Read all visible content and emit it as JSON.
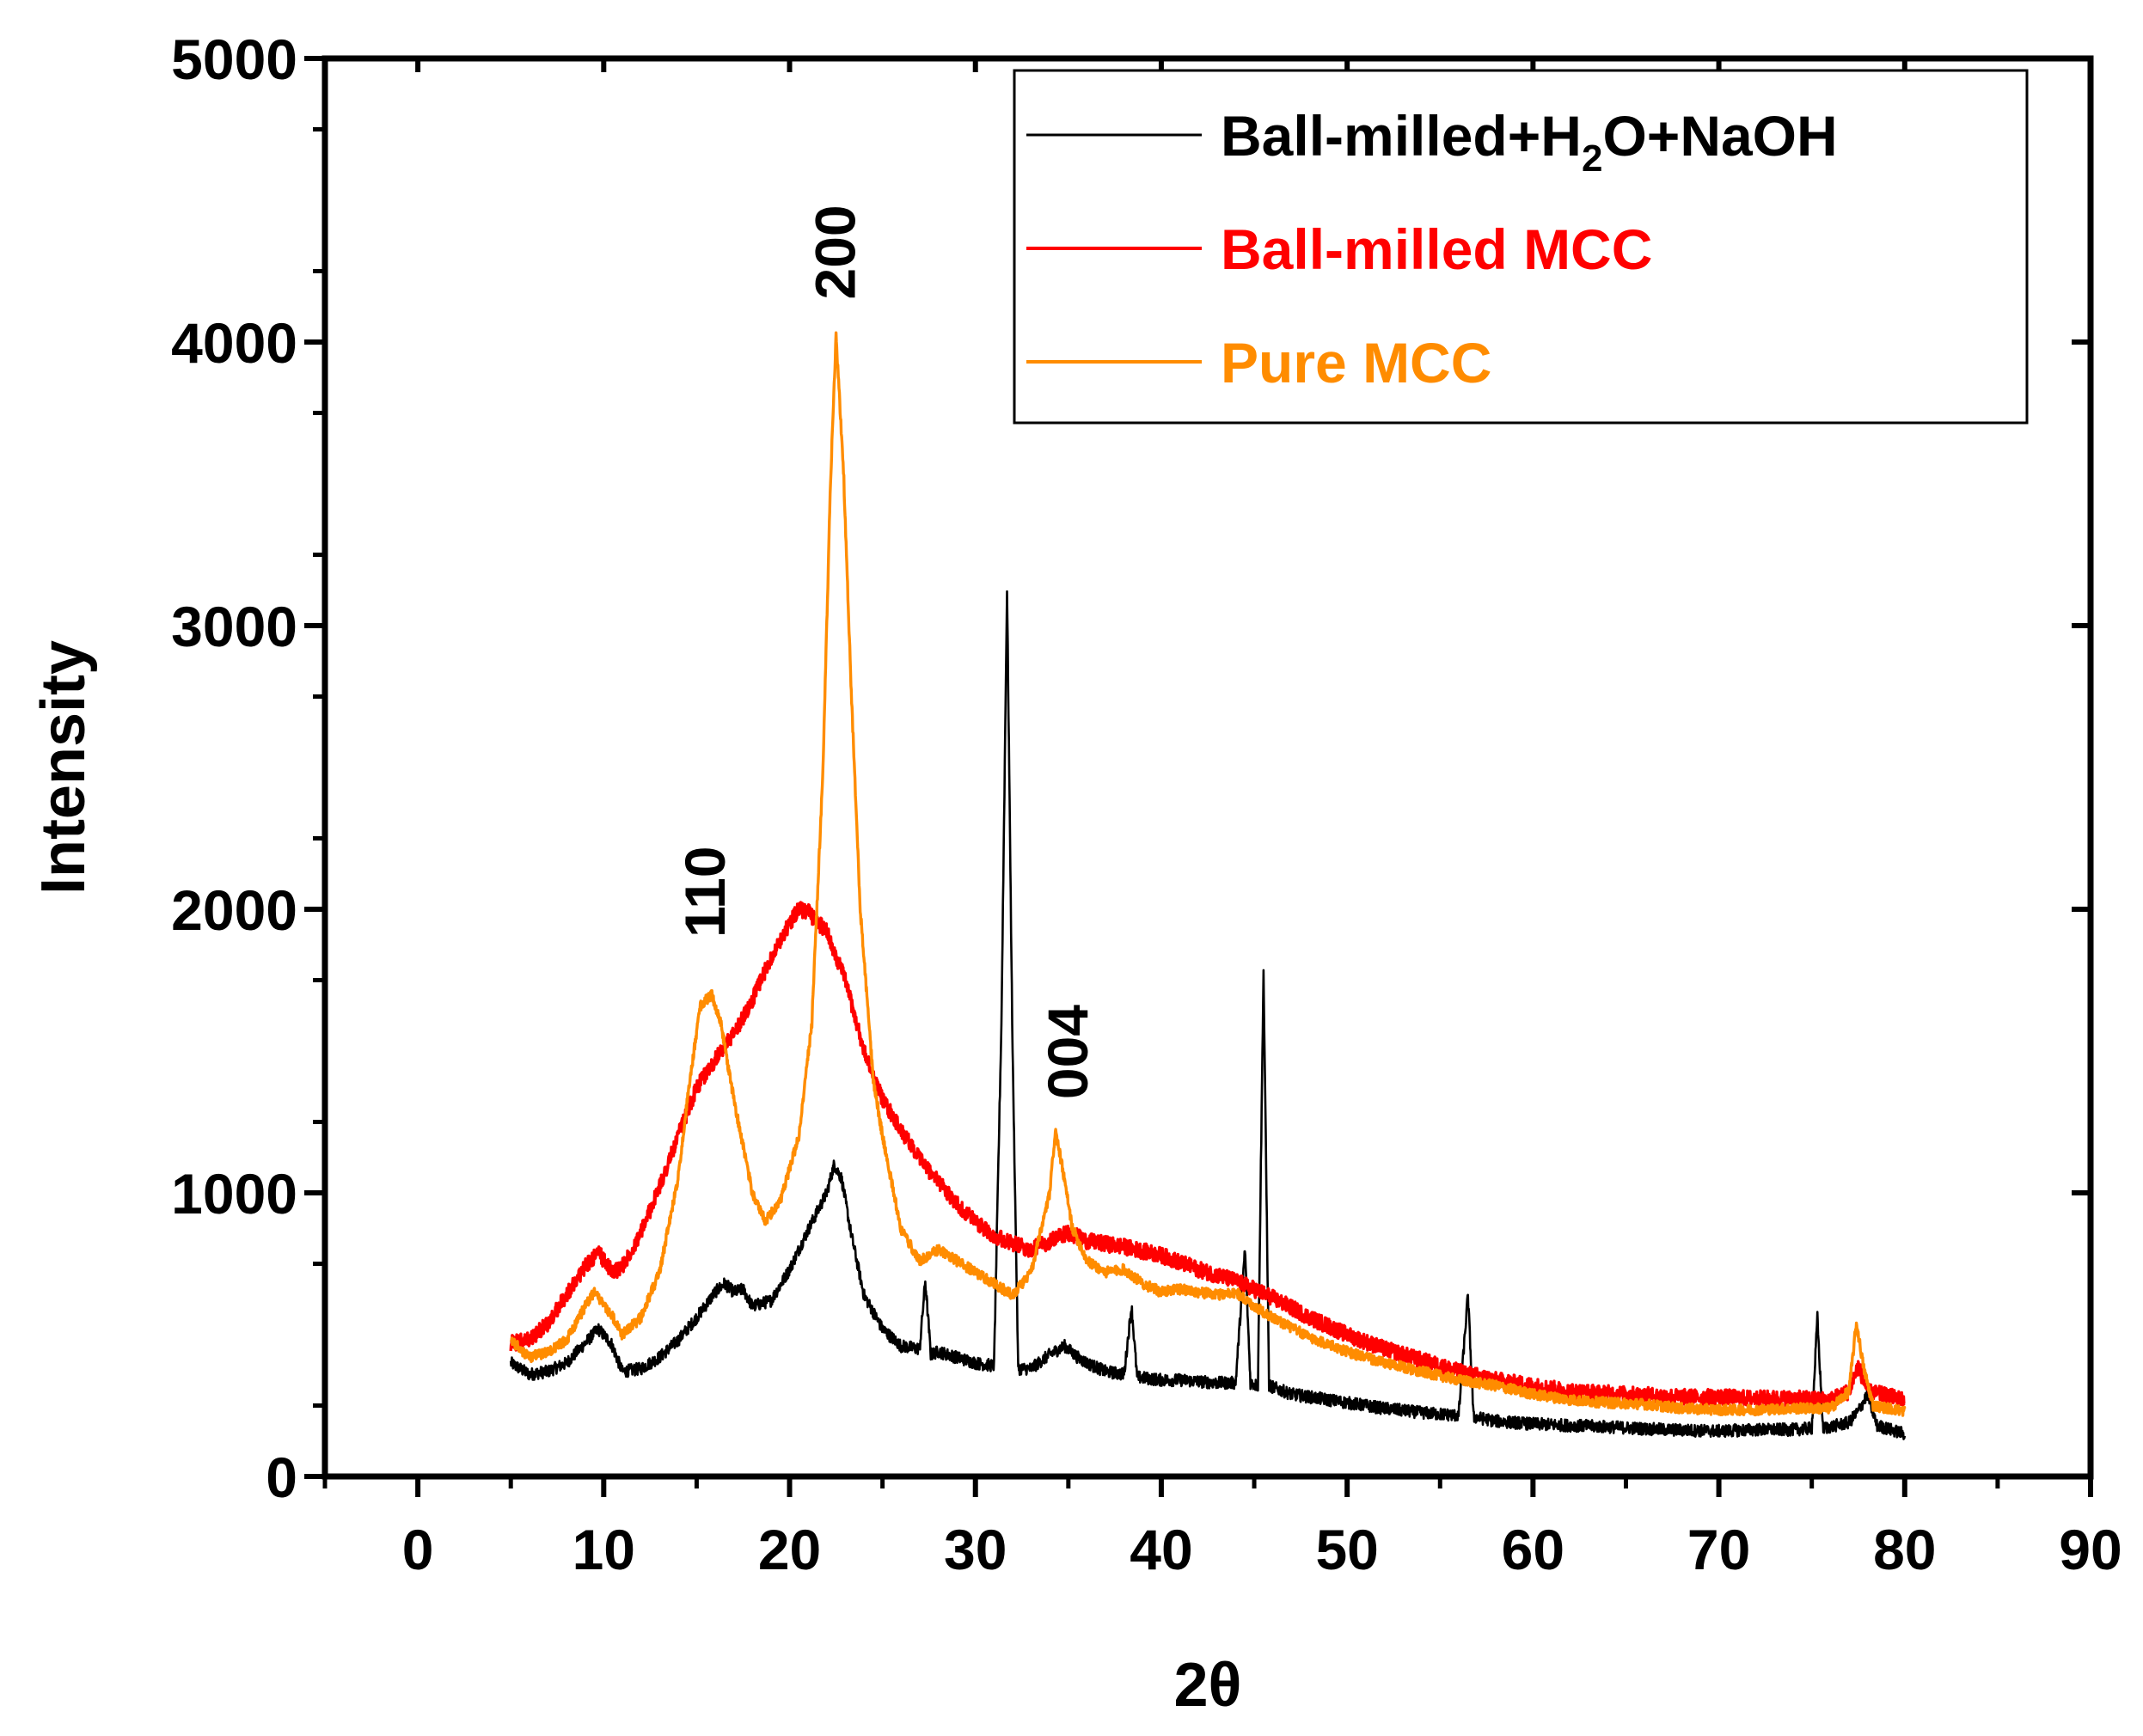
{
  "chart_data": {
    "type": "line",
    "title": "",
    "xlabel": "2θ",
    "ylabel": "Intensity",
    "xlim": [
      -5,
      90
    ],
    "ylim": [
      0,
      5000
    ],
    "xticks": [
      0,
      10,
      20,
      30,
      40,
      50,
      60,
      70,
      80,
      90
    ],
    "yticks": [
      0,
      1000,
      2000,
      3000,
      4000,
      5000
    ],
    "xtick_labels": [
      "0",
      "10",
      "20",
      "30",
      "40",
      "50",
      "60",
      "70",
      "80",
      "90"
    ],
    "ytick_labels": [
      "0",
      "1000",
      "2000",
      "3000",
      "4000",
      "5000"
    ],
    "legend_position": "top-right",
    "legend": {
      "entries": [
        {
          "series_index": 0,
          "label_parts": [
            {
              "text": "Ball-milled+H"
            },
            {
              "text": "2",
              "sub": true
            },
            {
              "text": "O+NaOH"
            }
          ],
          "color": "#000000"
        },
        {
          "series_index": 1,
          "label_parts": [
            {
              "text": "Ball-milled MCC"
            }
          ],
          "color": "#ff0000"
        },
        {
          "series_index": 2,
          "label_parts": [
            {
              "text": "Pure MCC"
            }
          ],
          "color": "#ff8c00"
        }
      ]
    },
    "annotations": [
      {
        "text": "110",
        "x": 15.5,
        "y": 1900,
        "rotation": -90
      },
      {
        "text": "200",
        "x": 22.5,
        "y": 4150,
        "rotation": -90
      },
      {
        "text": "004",
        "x": 35,
        "y": 1330,
        "rotation": -90
      }
    ],
    "series": [
      {
        "name": "Ball-milled+H2O+NaOH",
        "color": "#000000",
        "noise": 22,
        "points": [
          [
            5,
            400
          ],
          [
            6,
            360
          ],
          [
            7,
            370
          ],
          [
            8,
            400
          ],
          [
            9,
            470
          ],
          [
            9.7,
            520
          ],
          [
            10.4,
            470
          ],
          [
            11,
            370
          ],
          [
            12,
            380
          ],
          [
            13,
            420
          ],
          [
            14,
            480
          ],
          [
            15,
            560
          ],
          [
            16,
            650
          ],
          [
            16.5,
            680
          ],
          [
            17,
            650
          ],
          [
            17.5,
            660
          ],
          [
            18,
            600
          ],
          [
            19,
            620
          ],
          [
            20,
            730
          ],
          [
            21,
            870
          ],
          [
            22,
            1000
          ],
          [
            22.4,
            1100
          ],
          [
            22.8,
            1050
          ],
          [
            23.3,
            860
          ],
          [
            24,
            640
          ],
          [
            25,
            520
          ],
          [
            26,
            460
          ],
          [
            27,
            450
          ],
          [
            27.3,
            690
          ],
          [
            27.6,
            430
          ],
          [
            28,
            440
          ],
          [
            29,
            420
          ],
          [
            30,
            400
          ],
          [
            31,
            390
          ],
          [
            31.4,
            1600
          ],
          [
            31.7,
            3130
          ],
          [
            32.0,
            1500
          ],
          [
            32.3,
            380
          ],
          [
            33,
            380
          ],
          [
            34,
            430
          ],
          [
            34.8,
            460
          ],
          [
            35.5,
            420
          ],
          [
            36,
            400
          ],
          [
            37,
            370
          ],
          [
            38,
            360
          ],
          [
            38.4,
            600
          ],
          [
            38.7,
            350
          ],
          [
            40,
            340
          ],
          [
            41,
            340
          ],
          [
            42,
            335
          ],
          [
            43,
            330
          ],
          [
            44,
            330
          ],
          [
            44.5,
            800
          ],
          [
            44.8,
            330
          ],
          [
            45.2,
            320
          ],
          [
            45.5,
            1780
          ],
          [
            45.8,
            320
          ],
          [
            47,
            290
          ],
          [
            48,
            280
          ],
          [
            50,
            260
          ],
          [
            52,
            240
          ],
          [
            54,
            225
          ],
          [
            55,
            220
          ],
          [
            56,
            215
          ],
          [
            56.5,
            640
          ],
          [
            56.8,
            210
          ],
          [
            58,
            195
          ],
          [
            60,
            185
          ],
          [
            62,
            180
          ],
          [
            64,
            175
          ],
          [
            65.5,
            170
          ],
          [
            67,
            165
          ],
          [
            70,
            160
          ],
          [
            72,
            165
          ],
          [
            74,
            165
          ],
          [
            75,
            170
          ],
          [
            75.3,
            560
          ],
          [
            75.6,
            170
          ],
          [
            76,
            175
          ],
          [
            77,
            190
          ],
          [
            77.5,
            230
          ],
          [
            78,
            290
          ],
          [
            78.5,
            180
          ],
          [
            80,
            150
          ]
        ]
      },
      {
        "name": "Ball-milled MCC",
        "color": "#ff0000",
        "noise": 28,
        "points": [
          [
            5,
            470
          ],
          [
            6,
            480
          ],
          [
            7,
            540
          ],
          [
            8,
            640
          ],
          [
            9,
            740
          ],
          [
            9.7,
            790
          ],
          [
            10.5,
            720
          ],
          [
            11,
            740
          ],
          [
            12,
            860
          ],
          [
            13,
            1020
          ],
          [
            14,
            1200
          ],
          [
            15,
            1370
          ],
          [
            16,
            1470
          ],
          [
            17,
            1560
          ],
          [
            18,
            1680
          ],
          [
            19,
            1830
          ],
          [
            20,
            1950
          ],
          [
            20.5,
            2000
          ],
          [
            21,
            1990
          ],
          [
            22,
            1920
          ],
          [
            23,
            1750
          ],
          [
            24,
            1500
          ],
          [
            25,
            1330
          ],
          [
            26,
            1220
          ],
          [
            27,
            1120
          ],
          [
            28,
            1040
          ],
          [
            29,
            960
          ],
          [
            30,
            900
          ],
          [
            31,
            850
          ],
          [
            32,
            820
          ],
          [
            33,
            800
          ],
          [
            34,
            830
          ],
          [
            35,
            860
          ],
          [
            36,
            830
          ],
          [
            38,
            810
          ],
          [
            40,
            780
          ],
          [
            42,
            730
          ],
          [
            44,
            690
          ],
          [
            46,
            630
          ],
          [
            48,
            560
          ],
          [
            50,
            500
          ],
          [
            52,
            450
          ],
          [
            54,
            410
          ],
          [
            56,
            370
          ],
          [
            58,
            340
          ],
          [
            60,
            320
          ],
          [
            62,
            300
          ],
          [
            65,
            290
          ],
          [
            68,
            280
          ],
          [
            70,
            280
          ],
          [
            72,
            275
          ],
          [
            74,
            275
          ],
          [
            76,
            270
          ],
          [
            77,
            300
          ],
          [
            77.5,
            390
          ],
          [
            78,
            300
          ],
          [
            80,
            270
          ]
        ]
      },
      {
        "name": "Pure MCC",
        "color": "#ff8c00",
        "noise": 18,
        "points": [
          [
            5,
            480
          ],
          [
            6,
            420
          ],
          [
            7,
            440
          ],
          [
            8,
            480
          ],
          [
            9,
            600
          ],
          [
            9.5,
            650
          ],
          [
            10.5,
            560
          ],
          [
            11,
            500
          ],
          [
            12,
            560
          ],
          [
            13,
            720
          ],
          [
            14,
            1050
          ],
          [
            14.6,
            1380
          ],
          [
            15.2,
            1660
          ],
          [
            15.8,
            1700
          ],
          [
            16.3,
            1600
          ],
          [
            17,
            1330
          ],
          [
            18,
            1000
          ],
          [
            18.7,
            900
          ],
          [
            19.5,
            970
          ],
          [
            20.5,
            1200
          ],
          [
            21.2,
            1600
          ],
          [
            21.8,
            2500
          ],
          [
            22.2,
            3500
          ],
          [
            22.5,
            4020
          ],
          [
            22.9,
            3550
          ],
          [
            23.3,
            2800
          ],
          [
            23.8,
            2000
          ],
          [
            24.5,
            1400
          ],
          [
            25,
            1200
          ],
          [
            26,
            870
          ],
          [
            27,
            760
          ],
          [
            28,
            800
          ],
          [
            29,
            760
          ],
          [
            30,
            720
          ],
          [
            31,
            680
          ],
          [
            32,
            640
          ],
          [
            33,
            720
          ],
          [
            34,
            1000
          ],
          [
            34.3,
            1220
          ],
          [
            34.7,
            1080
          ],
          [
            35.2,
            880
          ],
          [
            36,
            760
          ],
          [
            37,
            720
          ],
          [
            38,
            730
          ],
          [
            39,
            680
          ],
          [
            40,
            650
          ],
          [
            41,
            660
          ],
          [
            42,
            650
          ],
          [
            43,
            640
          ],
          [
            44,
            650
          ],
          [
            45,
            600
          ],
          [
            46,
            560
          ],
          [
            48,
            490
          ],
          [
            50,
            440
          ],
          [
            52,
            400
          ],
          [
            54,
            370
          ],
          [
            56,
            340
          ],
          [
            58,
            320
          ],
          [
            60,
            290
          ],
          [
            62,
            270
          ],
          [
            64,
            260
          ],
          [
            66,
            255
          ],
          [
            68,
            240
          ],
          [
            70,
            235
          ],
          [
            72,
            235
          ],
          [
            74,
            240
          ],
          [
            76,
            240
          ],
          [
            77,
            300
          ],
          [
            77.4,
            540
          ],
          [
            77.8,
            380
          ],
          [
            78.3,
            250
          ],
          [
            80,
            230
          ]
        ]
      }
    ]
  }
}
